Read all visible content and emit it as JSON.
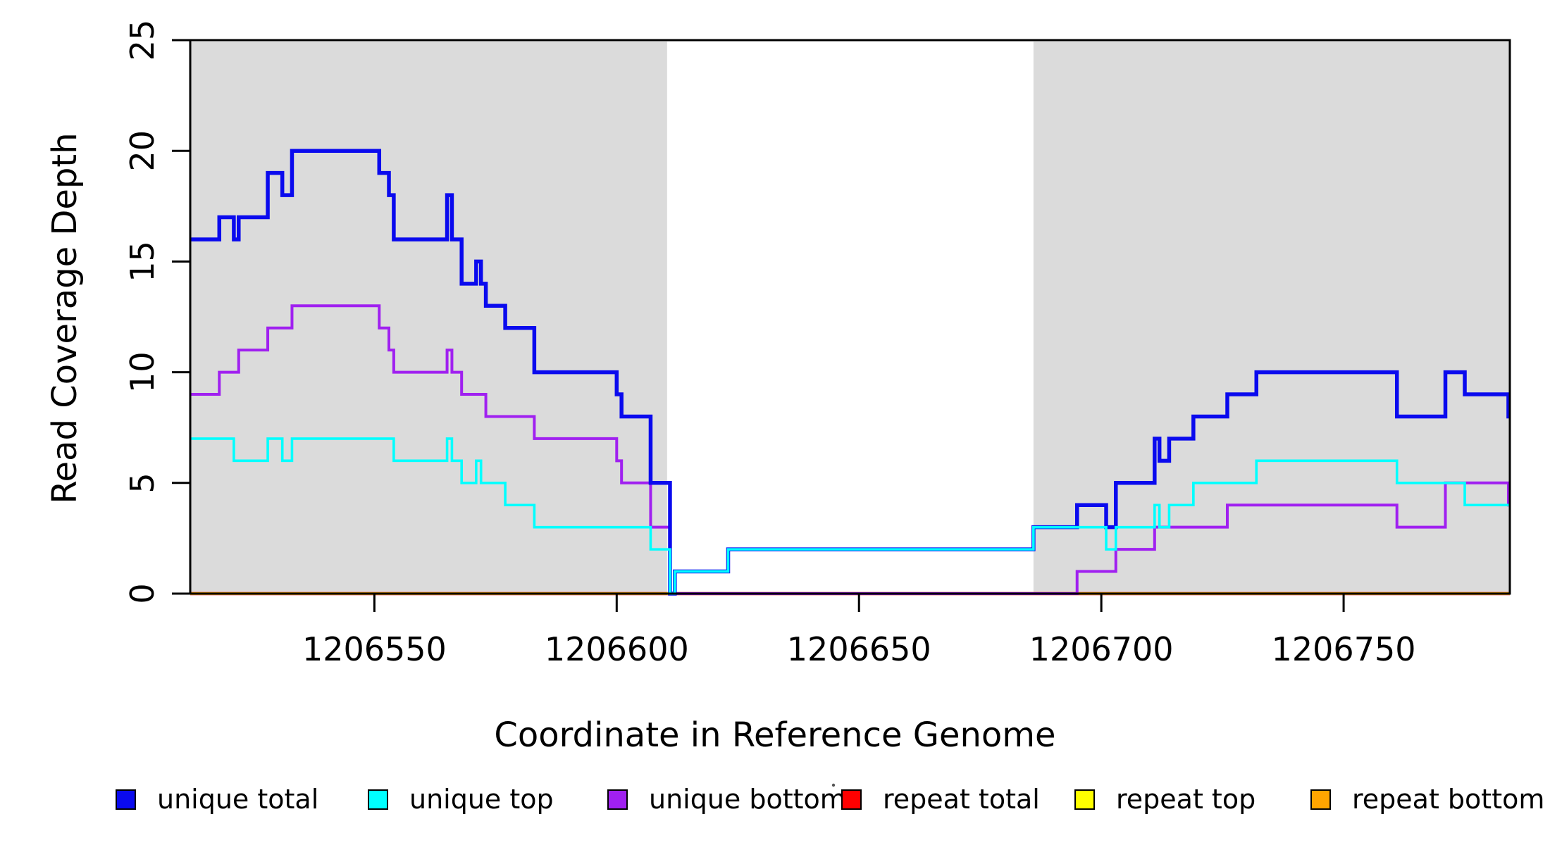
{
  "chart_data": {
    "type": "line",
    "subtype": "step-coverage-plot",
    "xlabel": "Coordinate in Reference Genome",
    "ylabel": "Read Coverage Depth",
    "xlim": [
      1206512,
      1206784.3
    ],
    "ylim": [
      0,
      25
    ],
    "xticks": [
      1206550,
      1206600,
      1206650,
      1206700,
      1206750
    ],
    "yticks": [
      0,
      5,
      10,
      15,
      20,
      25
    ],
    "grid": false,
    "background_color": "#ffffff",
    "shaded_region_color": "#dbdbdb",
    "shaded_regions": [
      {
        "x0": 1206512,
        "x1": 1206610.4
      },
      {
        "x0": 1206686,
        "x1": 1206784.3
      }
    ],
    "series": [
      {
        "name": "repeat total",
        "color": "#ff0000",
        "width": 4.5,
        "steps": [
          [
            1206512,
            0
          ]
        ]
      },
      {
        "name": "repeat top",
        "color": "#ffff00",
        "width": 4,
        "steps": [
          [
            1206512,
            0
          ]
        ]
      },
      {
        "name": "repeat bottom",
        "color": "#ffa500",
        "width": 4,
        "segments": [
          [
            1206512,
            1206610.4,
            0
          ],
          [
            1206686,
            1206784.3,
            0
          ]
        ]
      },
      {
        "name": "unique bottom",
        "color": "#a020f0",
        "width": 4,
        "steps": [
          [
            1206512,
            9
          ],
          [
            1206518,
            10
          ],
          [
            1206522,
            11
          ],
          [
            1206528,
            12
          ],
          [
            1206533,
            13
          ],
          [
            1206551,
            12
          ],
          [
            1206553,
            11
          ],
          [
            1206554,
            10
          ],
          [
            1206565,
            11
          ],
          [
            1206566,
            10
          ],
          [
            1206568,
            9
          ],
          [
            1206573,
            8
          ],
          [
            1206583,
            7
          ],
          [
            1206600,
            6
          ],
          [
            1206601,
            5
          ],
          [
            1206607,
            3
          ],
          [
            1206611,
            0
          ],
          [
            1206695,
            1
          ],
          [
            1206703,
            2
          ],
          [
            1206711,
            3
          ],
          [
            1206726,
            4
          ],
          [
            1206761,
            3
          ],
          [
            1206771,
            5
          ],
          [
            1206784,
            4
          ]
        ]
      },
      {
        "name": "unique total",
        "color": "#0a0aee",
        "width": 5.5,
        "steps": [
          [
            1206512,
            16
          ],
          [
            1206518,
            17
          ],
          [
            1206521,
            16
          ],
          [
            1206522,
            17
          ],
          [
            1206528,
            19
          ],
          [
            1206531,
            18
          ],
          [
            1206533,
            20
          ],
          [
            1206551,
            19
          ],
          [
            1206553,
            18
          ],
          [
            1206554,
            16
          ],
          [
            1206565,
            18
          ],
          [
            1206566,
            16
          ],
          [
            1206568,
            14
          ],
          [
            1206571,
            15
          ],
          [
            1206572,
            14
          ],
          [
            1206573,
            13
          ],
          [
            1206577,
            12
          ],
          [
            1206583,
            10
          ],
          [
            1206600,
            9
          ],
          [
            1206601,
            8
          ],
          [
            1206607,
            5
          ],
          [
            1206611,
            0
          ],
          [
            1206612,
            1
          ],
          [
            1206623,
            2
          ],
          [
            1206686,
            3
          ],
          [
            1206695,
            4
          ],
          [
            1206701,
            3
          ],
          [
            1206703,
            5
          ],
          [
            1206711,
            7
          ],
          [
            1206712,
            6
          ],
          [
            1206714,
            7
          ],
          [
            1206719,
            8
          ],
          [
            1206726,
            9
          ],
          [
            1206732,
            10
          ],
          [
            1206761,
            8
          ],
          [
            1206771,
            10
          ],
          [
            1206775,
            9
          ],
          [
            1206784,
            8
          ]
        ]
      },
      {
        "name": "unique top",
        "color": "#00ffff",
        "width": 3.6,
        "steps": [
          [
            1206512,
            7
          ],
          [
            1206521,
            6
          ],
          [
            1206528,
            7
          ],
          [
            1206531,
            6
          ],
          [
            1206533,
            7
          ],
          [
            1206554,
            6
          ],
          [
            1206565,
            7
          ],
          [
            1206566,
            6
          ],
          [
            1206568,
            5
          ],
          [
            1206571,
            6
          ],
          [
            1206572,
            5
          ],
          [
            1206577,
            4
          ],
          [
            1206583,
            3
          ],
          [
            1206607,
            2
          ],
          [
            1206611,
            0
          ],
          [
            1206612,
            1
          ],
          [
            1206623,
            2
          ],
          [
            1206686,
            3
          ],
          [
            1206701,
            2
          ],
          [
            1206703,
            3
          ],
          [
            1206711,
            4
          ],
          [
            1206712,
            3
          ],
          [
            1206714,
            4
          ],
          [
            1206719,
            5
          ],
          [
            1206732,
            6
          ],
          [
            1206761,
            5
          ],
          [
            1206775,
            4
          ]
        ]
      }
    ],
    "legend": {
      "position": "bottom",
      "items": [
        {
          "label": "unique total",
          "color": "#0a0aee"
        },
        {
          "label": "unique top",
          "color": "#00ffff"
        },
        {
          "label": "unique bottom",
          "color": "#a020f0"
        },
        {
          "label": "repeat total",
          "color": "#ff0000"
        },
        {
          "label": "repeat top",
          "color": "#ffff00"
        },
        {
          "label": "repeat bottom",
          "color": "#ffa500"
        }
      ]
    }
  }
}
